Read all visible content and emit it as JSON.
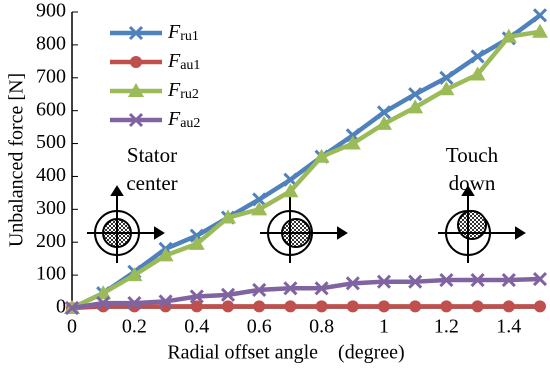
{
  "chart_data": {
    "type": "line",
    "xlabel": "Radial offset angle    (degree)",
    "ylabel": "Unbalanced force [N]",
    "x": [
      0,
      0.1,
      0.2,
      0.3,
      0.4,
      0.5,
      0.6,
      0.7,
      0.8,
      0.9,
      1.0,
      1.1,
      1.2,
      1.3,
      1.4,
      1.5
    ],
    "series": [
      {
        "name": "Fru1",
        "color": "#4f81bd",
        "marker": "x",
        "values": [
          0,
          45,
          110,
          180,
          220,
          275,
          330,
          390,
          460,
          525,
          595,
          650,
          700,
          765,
          820,
          890
        ]
      },
      {
        "name": "Fau1",
        "color": "#c0504d",
        "marker": "circle",
        "values": [
          0,
          5,
          5,
          5,
          5,
          5,
          5,
          5,
          5,
          5,
          5,
          5,
          5,
          5,
          5,
          5
        ]
      },
      {
        "name": "Fru2",
        "color": "#9bbb59",
        "marker": "triangle",
        "values": [
          0,
          45,
          100,
          160,
          195,
          275,
          300,
          355,
          460,
          500,
          560,
          610,
          665,
          710,
          825,
          840
        ]
      },
      {
        "name": "Fau2",
        "color": "#8064a2",
        "marker": "x",
        "values": [
          0,
          15,
          15,
          20,
          35,
          40,
          55,
          60,
          60,
          75,
          80,
          80,
          85,
          85,
          85,
          88
        ]
      }
    ],
    "xlim": [
      0,
      1.5
    ],
    "xticks": [
      0,
      0.2,
      0.4,
      0.6,
      0.8,
      1,
      1.2,
      1.4
    ],
    "ylim": [
      0,
      900
    ],
    "yticks": [
      0,
      100,
      200,
      300,
      400,
      500,
      600,
      700,
      800,
      900
    ],
    "annotations": [
      [
        "Stator",
        "center"
      ],
      [
        "Touch",
        "down"
      ]
    ]
  }
}
